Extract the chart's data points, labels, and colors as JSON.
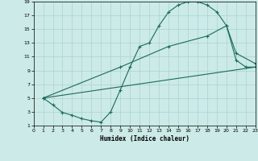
{
  "xlabel": "Humidex (Indice chaleur)",
  "background_color": "#cceae7",
  "grid_color": "#aad4d0",
  "line_color": "#1a6b5a",
  "xlim": [
    0,
    23
  ],
  "ylim": [
    1,
    19
  ],
  "xticks": [
    0,
    1,
    2,
    3,
    4,
    5,
    6,
    7,
    8,
    9,
    10,
    11,
    12,
    13,
    14,
    15,
    16,
    17,
    18,
    19,
    20,
    21,
    22,
    23
  ],
  "yticks": [
    1,
    3,
    5,
    7,
    9,
    11,
    13,
    15,
    17,
    19
  ],
  "line1_x": [
    1,
    2,
    3,
    4,
    5,
    6,
    7,
    8,
    9,
    10,
    11,
    12,
    13,
    14,
    15,
    16,
    17,
    18,
    19,
    20,
    21,
    22,
    23
  ],
  "line1_y": [
    5,
    4,
    2.9,
    2.5,
    2.0,
    1.7,
    1.5,
    3.0,
    6.2,
    9.5,
    12.5,
    13.0,
    15.5,
    17.5,
    18.5,
    19,
    19,
    18.5,
    17.5,
    15.5,
    10.5,
    9.5,
    9.5
  ],
  "line2_x": [
    1,
    9,
    14,
    18,
    20,
    21,
    23
  ],
  "line2_y": [
    5,
    9.5,
    12.5,
    14.0,
    15.5,
    11.5,
    10.0
  ],
  "line3_x": [
    1,
    23
  ],
  "line3_y": [
    5,
    9.5
  ]
}
